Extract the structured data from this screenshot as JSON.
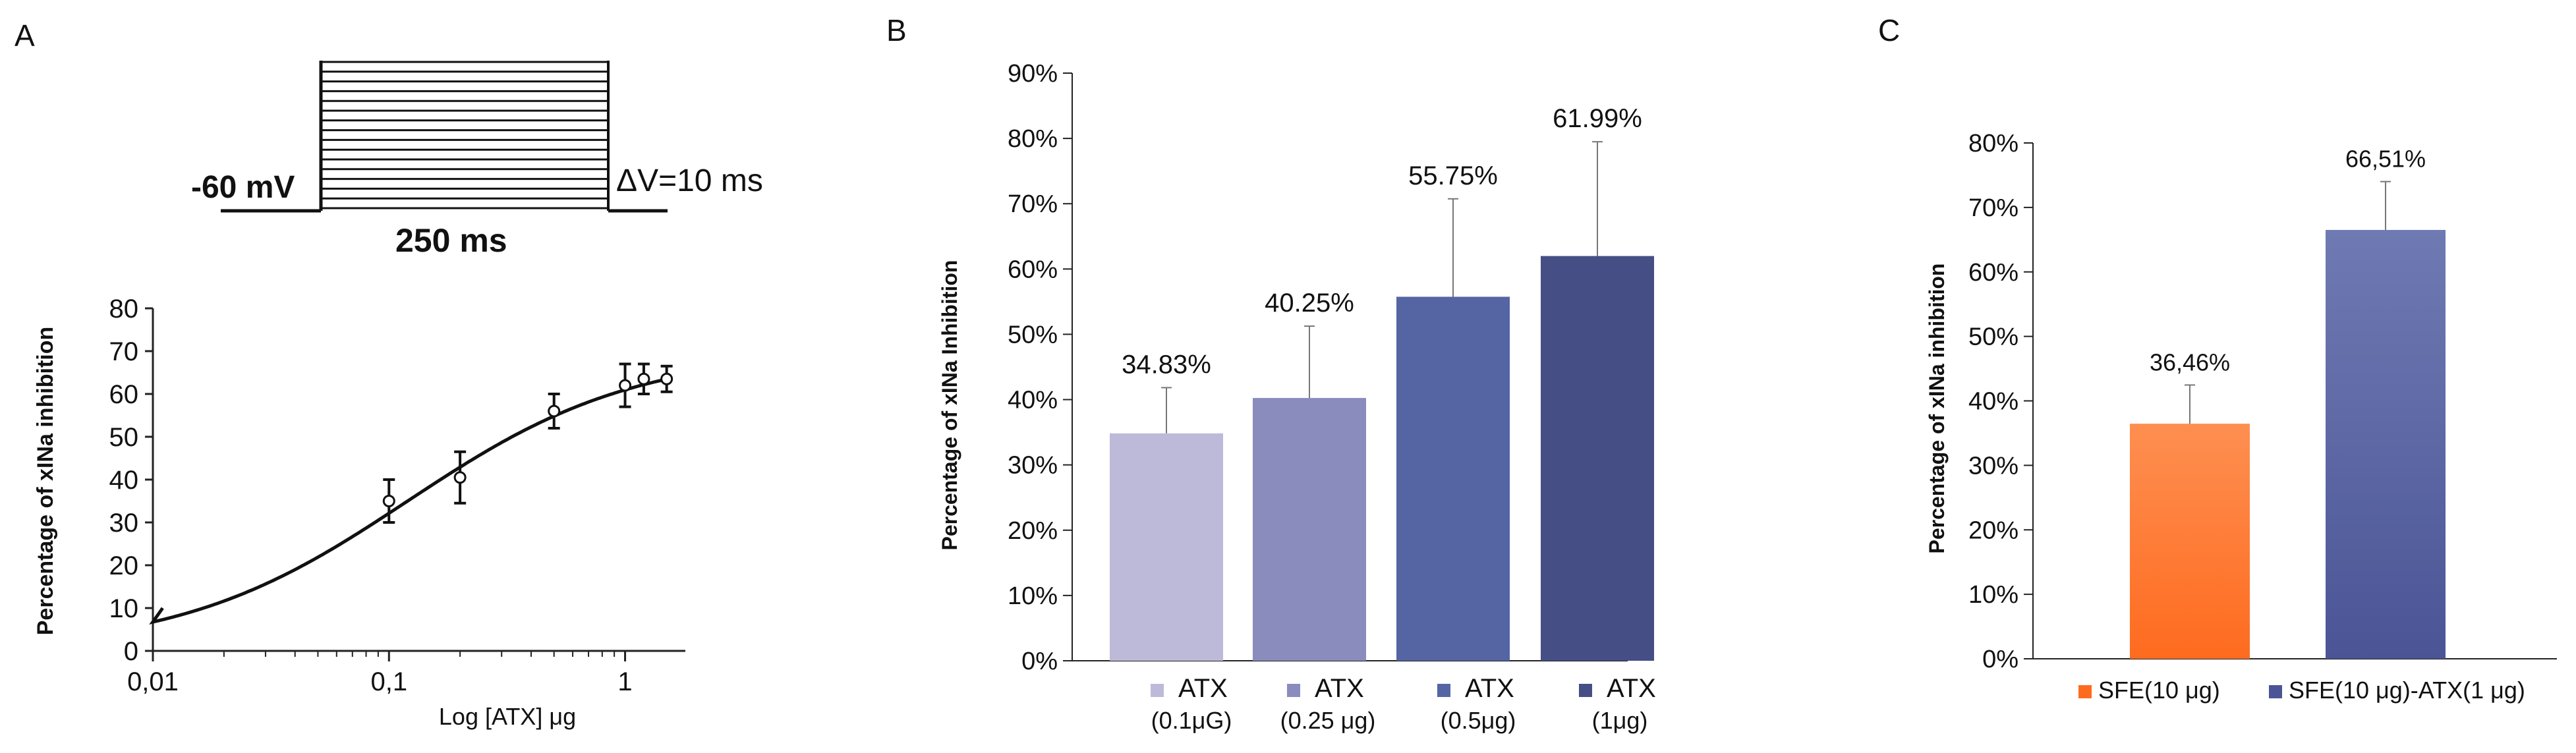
{
  "colors": {
    "axis": "#222222",
    "gridline": "#d0d0d0",
    "errorbar": "#777777",
    "atx_0_1": "#bdbad9",
    "atx_0_25": "#8a8cbd",
    "atx_0_5": "#5565a3",
    "atx_1": "#454f85",
    "sfe_top": "#fe8f51",
    "sfe_bottom": "#fe6b1f",
    "sfe_atx_top": "#6f7ab3",
    "sfe_atx_bottom": "#4b5596"
  },
  "panel_a": {
    "letter": "A",
    "protocol": {
      "holding_label": "-60 mV",
      "step_label": "ΔV=10 ms",
      "duration_label": "250 ms",
      "step_count": 16
    }
  },
  "panel_b": {
    "letter": "B"
  },
  "panel_c": {
    "letter": "C"
  },
  "chart_data": [
    {
      "id": "A",
      "type": "scatter",
      "title": "",
      "xlabel": "Log [ATX] μg",
      "ylabel": "Percentage of xINa inhibition",
      "xscale": "log",
      "xlim": [
        0.01,
        1.8
      ],
      "ylim": [
        0,
        80
      ],
      "x_ticks": [
        0.01,
        0.1,
        1
      ],
      "x_tick_labels": [
        "0,01",
        "0,1",
        "1"
      ],
      "y_ticks": [
        0,
        10,
        20,
        30,
        40,
        50,
        60,
        70,
        80
      ],
      "y_tick_labels": [
        "0",
        "10",
        "20",
        "30",
        "40",
        "50",
        "60",
        "70",
        "80"
      ],
      "points": [
        {
          "x": 0.1,
          "y": 35,
          "err": 5
        },
        {
          "x": 0.2,
          "y": 40.5,
          "err": 6
        },
        {
          "x": 0.5,
          "y": 56,
          "err": 4
        },
        {
          "x": 1.0,
          "y": 62,
          "err": 5
        },
        {
          "x": 1.2,
          "y": 63.5,
          "err": 3.5
        },
        {
          "x": 1.5,
          "y": 63.5,
          "err": 3
        }
      ],
      "fit": {
        "bottom": 0,
        "top": 70,
        "ec50": 0.12,
        "hill": 0.9
      }
    },
    {
      "id": "B",
      "type": "bar",
      "title": "",
      "xlabel": "",
      "ylabel": "Percentage of xINa Inhibition",
      "ylim": [
        0,
        90
      ],
      "y_ticks": [
        0,
        10,
        20,
        30,
        40,
        50,
        60,
        70,
        80,
        90
      ],
      "y_tick_labels": [
        "0%",
        "10%",
        "20%",
        "30%",
        "40%",
        "50%",
        "60%",
        "70%",
        "80%",
        "90%"
      ],
      "categories": [
        "ATX (0.1μG)",
        "ATX (0.25 μg)",
        "ATX (0.5μg)",
        "ATX (1μg)"
      ],
      "values": [
        34.83,
        40.25,
        55.75,
        61.99
      ],
      "errors": [
        7,
        11,
        15,
        17.5
      ],
      "data_labels": [
        "34.83%",
        "40.25%",
        "55.75%",
        "61.99%"
      ],
      "legend": [
        {
          "line1": "ATX",
          "line2": "(0.1μG)"
        },
        {
          "line1": "ATX",
          "line2": "(0.25 μg)"
        },
        {
          "line1": "ATX",
          "line2": "(0.5μg)"
        },
        {
          "line1": "ATX",
          "line2": "(1μg)"
        }
      ],
      "legend_position": "bottom"
    },
    {
      "id": "C",
      "type": "bar",
      "title": "",
      "xlabel": "",
      "ylabel": "Percentage of xINa inhibition",
      "ylim": [
        0,
        80
      ],
      "y_ticks": [
        0,
        10,
        20,
        30,
        40,
        50,
        60,
        70,
        80
      ],
      "y_tick_labels": [
        "0%",
        "10%",
        "20%",
        "30%",
        "40%",
        "50%",
        "60%",
        "70%",
        "80%"
      ],
      "categories": [
        "SFE(10 μg)",
        "SFE(10 μg)-ATX(1 μg)"
      ],
      "values": [
        36.46,
        66.51
      ],
      "errors": [
        6,
        7.5
      ],
      "data_labels": [
        "36,46%",
        "66,51%"
      ],
      "legend": [
        "SFE(10 μg)",
        "SFE(10 μg)-ATX(1 μg)"
      ],
      "legend_position": "bottom"
    }
  ]
}
